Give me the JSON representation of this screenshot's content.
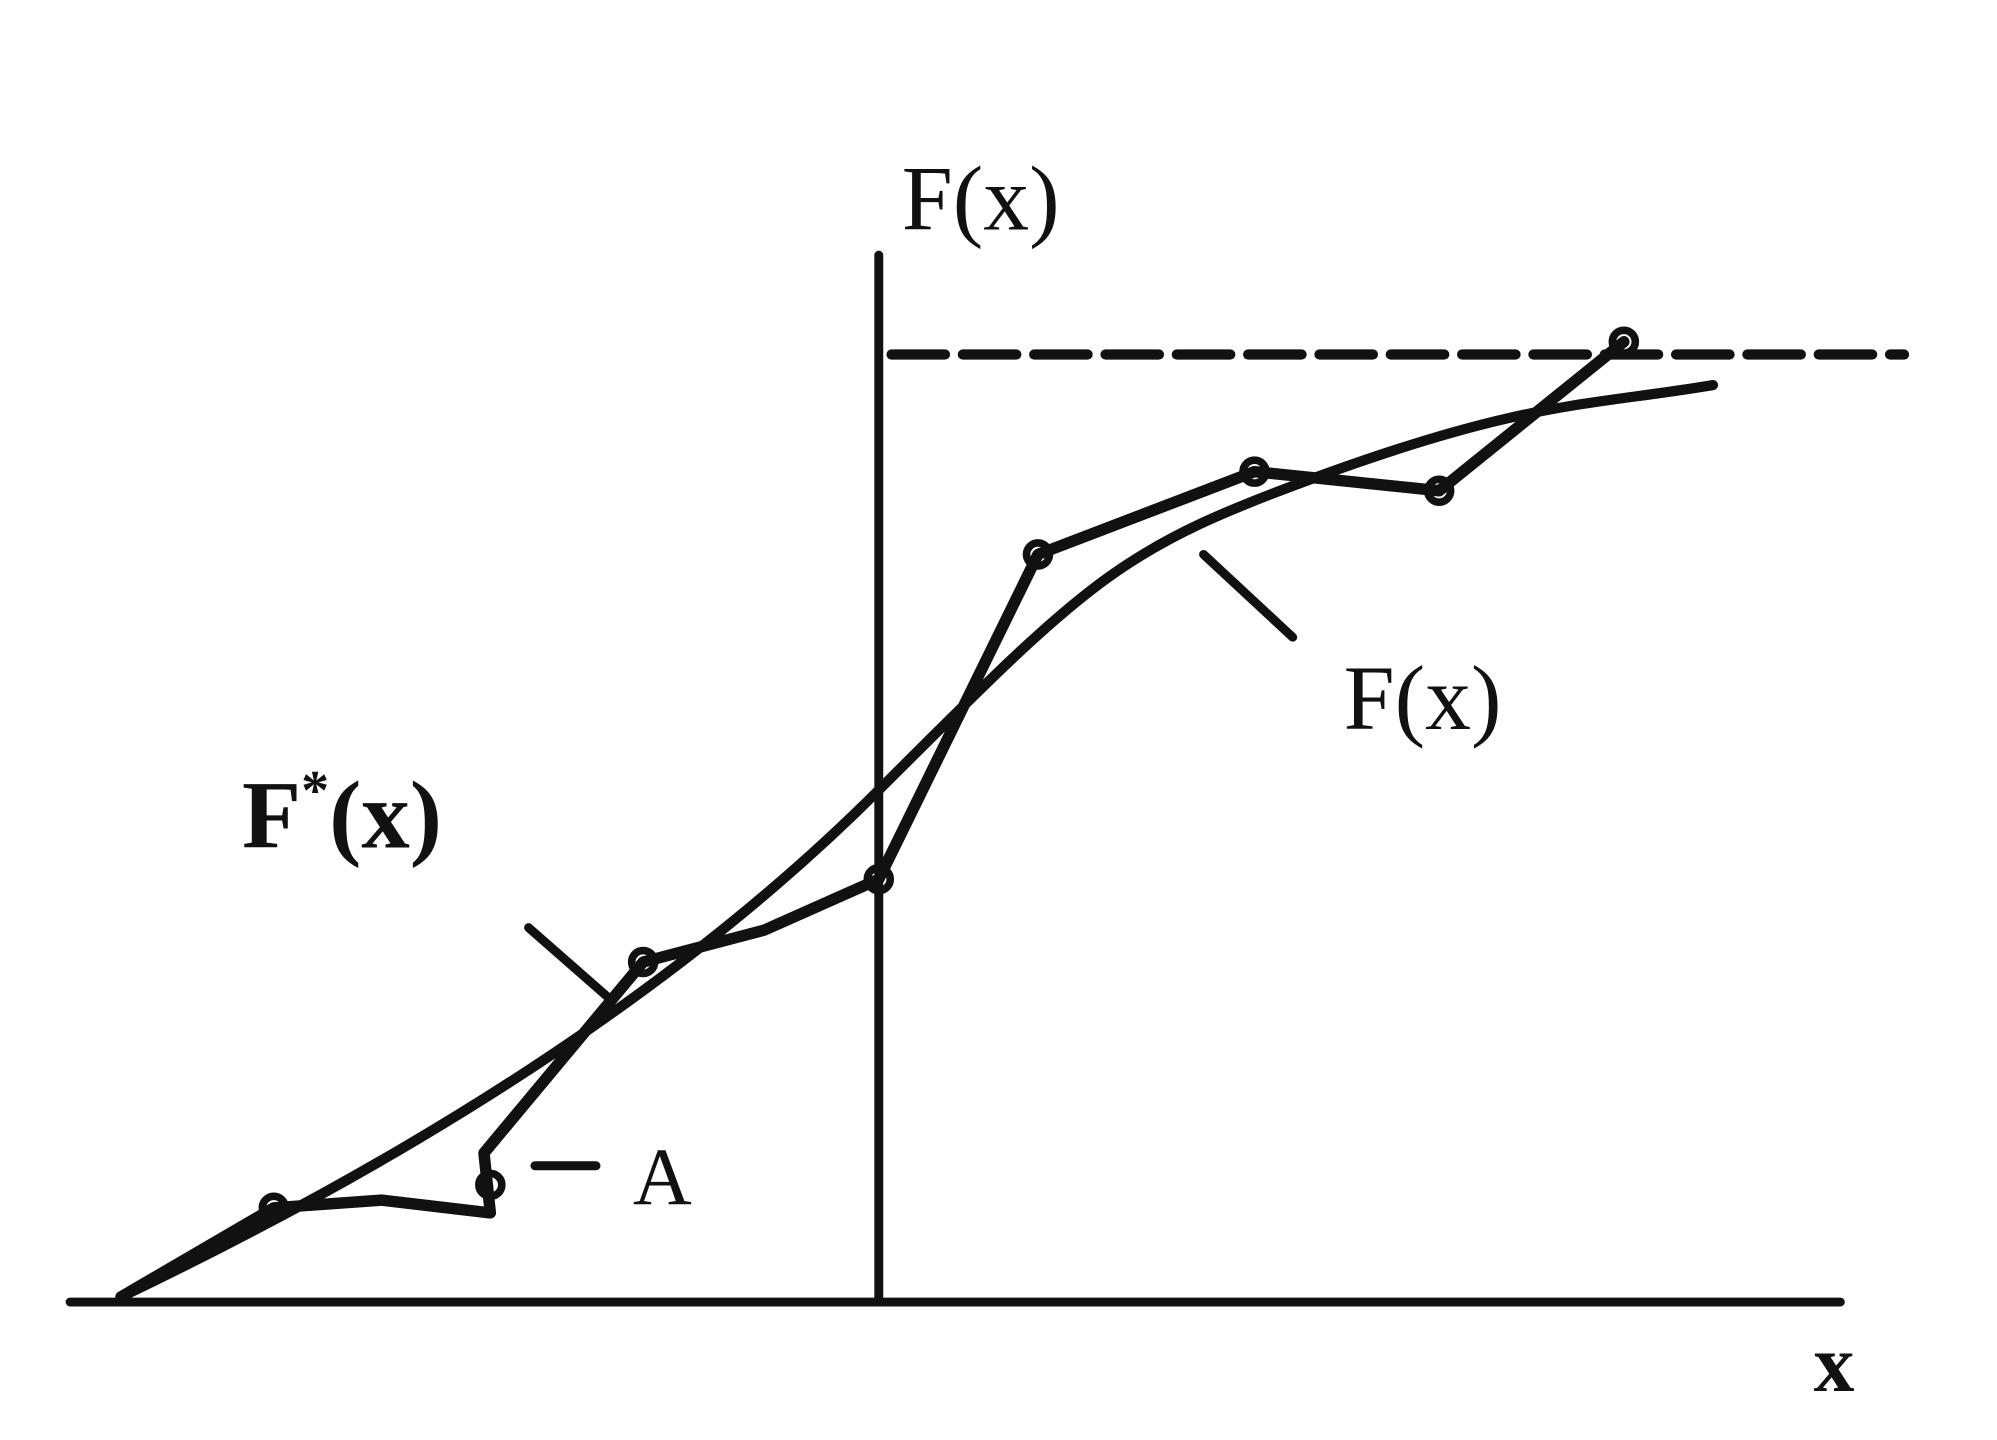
{
  "axis_labels": {
    "y": "F(x)",
    "x": "x"
  },
  "curve_labels": {
    "theoretical": "F(x)",
    "empirical": {
      "base": "F",
      "sup": "*",
      "args": "(x)"
    }
  },
  "point_label": "A"
}
